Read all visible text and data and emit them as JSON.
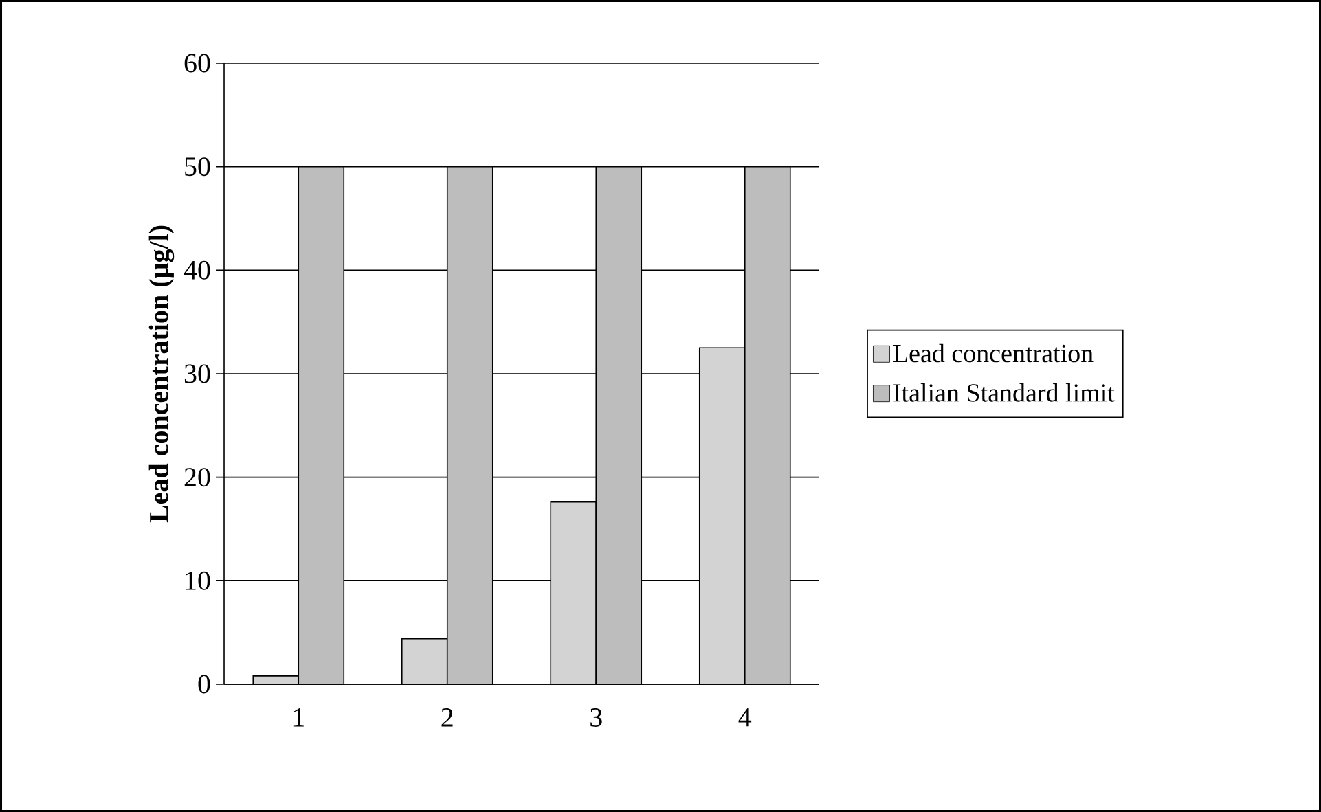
{
  "chart_data": {
    "type": "bar",
    "ylabel": "Lead concentration (µg/l)",
    "categories": [
      "1",
      "2",
      "3",
      "4"
    ],
    "series": [
      {
        "name": "Lead concentration",
        "color": "#d3d3d3",
        "values": [
          0.8,
          4.4,
          17.6,
          32.5
        ]
      },
      {
        "name": "Italian Standard limit",
        "color": "#bdbdbd",
        "values": [
          50,
          50,
          50,
          50
        ]
      }
    ],
    "ylim": [
      0,
      60
    ],
    "yticks": [
      0,
      10,
      20,
      30,
      40,
      50,
      60
    ],
    "grid": "y",
    "legend": "right"
  }
}
